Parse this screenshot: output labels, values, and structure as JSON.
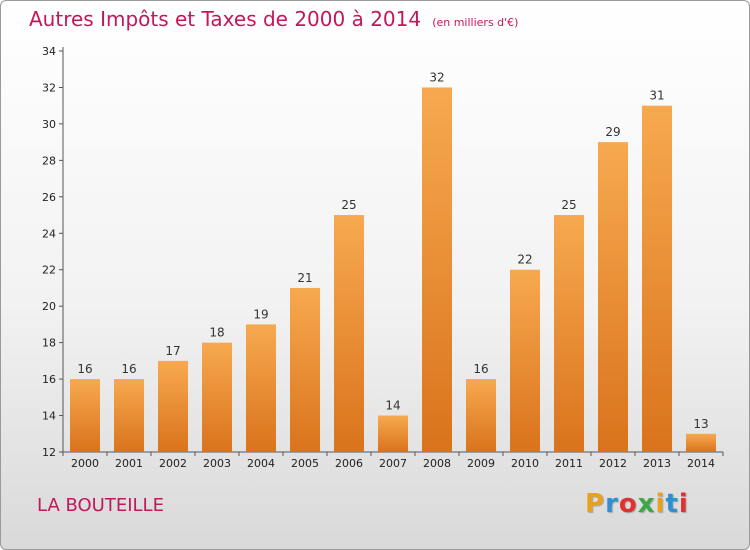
{
  "header": {
    "title": "Autres Impôts et Taxes de 2000 à 2014",
    "unit": "(en milliers d'€)"
  },
  "footer": {
    "commune": "LA BOUTEILLE",
    "logo_text": "Proxiti"
  },
  "colors": {
    "accent": "#c2185b",
    "bar_top": "#f7a94f",
    "bar_bottom": "#d9731c",
    "logo": [
      "#e8a020",
      "#2f8fd0",
      "#e03030",
      "#3aa845",
      "#e8a020",
      "#2f8fd0",
      "#e03030"
    ]
  },
  "chart_data": {
    "type": "bar",
    "title": "Autres Impôts et Taxes de 2000 à 2014",
    "subtitle": "(en milliers d'€)",
    "categories": [
      "2000",
      "2001",
      "2002",
      "2003",
      "2004",
      "2005",
      "2006",
      "2007",
      "2008",
      "2009",
      "2010",
      "2011",
      "2012",
      "2013",
      "2014"
    ],
    "values": [
      16,
      16,
      17,
      18,
      19,
      21,
      25,
      14,
      32,
      16,
      22,
      25,
      29,
      31,
      13
    ],
    "ylim": [
      12,
      34
    ],
    "yticks": [
      12,
      14,
      16,
      18,
      20,
      22,
      24,
      26,
      28,
      30,
      32,
      34
    ],
    "grid": false,
    "data_labels": true
  }
}
